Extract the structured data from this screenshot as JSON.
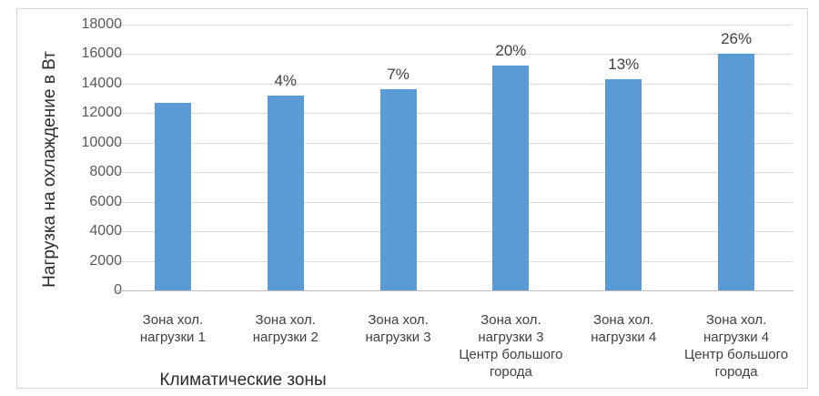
{
  "chart_data": {
    "type": "bar",
    "categories": [
      [
        "Зона хол.",
        "нагрузки 1"
      ],
      [
        "Зона хол.",
        "нагрузки 2"
      ],
      [
        "Зона хол.",
        "нагрузки 3"
      ],
      [
        "Зона хол.",
        "нагрузки 3",
        "Центр большого",
        "города"
      ],
      [
        "Зона хол.",
        "нагрузки 4"
      ],
      [
        "Зона хол.",
        "нагрузки 4",
        "Центр большого",
        "города"
      ]
    ],
    "values": [
      12700,
      13200,
      13600,
      15200,
      14300,
      16000
    ],
    "bar_labels": [
      "",
      "4%",
      "7%",
      "20%",
      "13%",
      "26%"
    ],
    "title": "",
    "xlabel": "Климатические зоны",
    "ylabel": "Нагрузка на охлаждение в Вт",
    "ylim": [
      0,
      18000
    ],
    "ytick_step": 2000,
    "yticks": [
      0,
      2000,
      4000,
      6000,
      8000,
      10000,
      12000,
      14000,
      16000,
      18000
    ],
    "grid": true,
    "legend": "none",
    "colors": {
      "bar": "#5b9bd5",
      "gridline": "#dcdcdc",
      "axis_line": "#bfbfbf",
      "tick_label": "#595959",
      "data_label": "#404040",
      "axis_title": "#2b2b2b",
      "frame_border": "#d6d6d6",
      "background": "#ffffff"
    }
  }
}
